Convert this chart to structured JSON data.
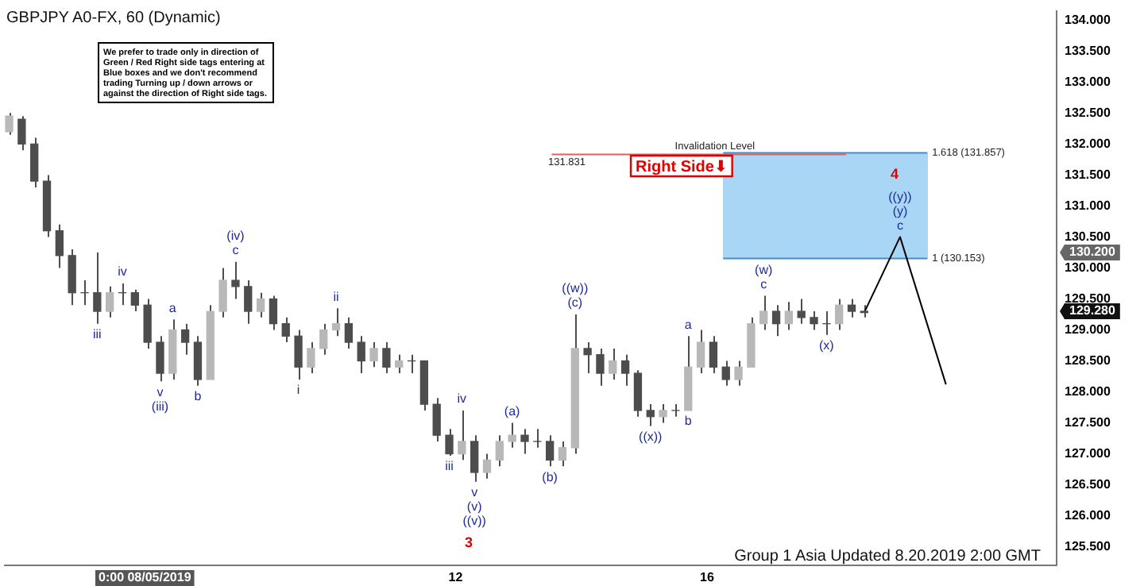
{
  "chart_data": {
    "type": "candlestick",
    "title": "GBPJPY A0-FX, 60 (Dynamic)",
    "x": [
      4.9,
      5.1,
      5.3,
      5.5,
      5.7,
      5.9,
      6.1,
      6.3,
      6.5,
      6.7,
      6.9,
      7.1,
      7.3,
      7.5,
      7.7,
      7.9,
      8.1,
      8.3,
      8.5,
      8.7,
      8.9,
      9.1,
      9.3,
      9.5,
      9.7,
      9.9,
      10.1,
      10.3,
      10.5,
      10.7,
      10.9,
      11.1,
      11.3,
      11.5,
      11.7,
      11.9,
      12.1,
      12.3,
      12.5,
      12.7,
      12.9,
      13.1,
      13.3,
      13.5,
      13.7,
      13.9,
      14.1,
      14.3,
      14.5,
      14.7,
      14.9,
      15.1,
      15.3,
      15.5,
      15.7,
      15.9,
      16.1,
      16.3,
      16.5,
      16.7,
      16.9,
      17.1,
      17.3,
      17.5,
      17.7,
      17.9,
      18.1,
      18.3,
      18.5
    ],
    "ohlc": [
      [
        132.2,
        132.5,
        132.15,
        132.45
      ],
      [
        132.4,
        132.45,
        131.9,
        132.0
      ],
      [
        132.0,
        132.1,
        131.3,
        131.4
      ],
      [
        131.4,
        131.5,
        130.5,
        130.6
      ],
      [
        130.6,
        130.7,
        130.0,
        130.2
      ],
      [
        130.2,
        130.3,
        129.4,
        129.6
      ],
      [
        129.6,
        129.8,
        129.4,
        129.6
      ],
      [
        129.6,
        130.25,
        129.1,
        129.3
      ],
      [
        129.3,
        129.7,
        129.2,
        129.6
      ],
      [
        129.6,
        129.75,
        129.4,
        129.6
      ],
      [
        129.6,
        129.65,
        129.3,
        129.4
      ],
      [
        129.4,
        129.5,
        128.7,
        128.8
      ],
      [
        128.8,
        128.9,
        128.17,
        128.3
      ],
      [
        128.3,
        129.17,
        128.2,
        129.0
      ],
      [
        129.0,
        129.1,
        128.6,
        128.8
      ],
      [
        128.8,
        128.9,
        128.1,
        128.2
      ],
      [
        128.2,
        129.4,
        128.2,
        129.3
      ],
      [
        129.3,
        130.0,
        129.2,
        129.8
      ],
      [
        129.8,
        130.1,
        129.5,
        129.7
      ],
      [
        129.7,
        129.8,
        129.1,
        129.3
      ],
      [
        129.3,
        129.6,
        129.2,
        129.5
      ],
      [
        129.5,
        129.55,
        129.0,
        129.1
      ],
      [
        129.1,
        129.2,
        128.8,
        128.9
      ],
      [
        128.9,
        129.0,
        128.2,
        128.4
      ],
      [
        128.4,
        128.8,
        128.3,
        128.7
      ],
      [
        128.7,
        129.1,
        128.6,
        129.0
      ],
      [
        129.0,
        129.35,
        128.9,
        129.1
      ],
      [
        129.1,
        129.2,
        128.7,
        128.8
      ],
      [
        128.8,
        128.9,
        128.3,
        128.5
      ],
      [
        128.5,
        128.8,
        128.4,
        128.7
      ],
      [
        128.7,
        128.8,
        128.3,
        128.4
      ],
      [
        128.4,
        128.6,
        128.3,
        128.5
      ],
      [
        128.5,
        128.6,
        128.3,
        128.5
      ],
      [
        128.5,
        128.5,
        127.7,
        127.8
      ],
      [
        127.8,
        127.9,
        127.2,
        127.3
      ],
      [
        127.3,
        127.4,
        126.97,
        127.0
      ],
      [
        127.0,
        127.7,
        126.9,
        127.2
      ],
      [
        127.2,
        127.3,
        126.55,
        126.7
      ],
      [
        126.7,
        127.0,
        126.6,
        126.9
      ],
      [
        126.9,
        127.3,
        126.8,
        127.2
      ],
      [
        127.2,
        127.5,
        127.1,
        127.3
      ],
      [
        127.3,
        127.4,
        127.0,
        127.2
      ],
      [
        127.2,
        127.4,
        127.1,
        127.2
      ],
      [
        127.2,
        127.3,
        126.8,
        126.9
      ],
      [
        126.9,
        127.2,
        126.8,
        127.1
      ],
      [
        127.1,
        129.25,
        127.0,
        128.7
      ],
      [
        128.7,
        128.8,
        128.3,
        128.6
      ],
      [
        128.6,
        128.7,
        128.1,
        128.3
      ],
      [
        128.3,
        128.7,
        128.2,
        128.5
      ],
      [
        128.5,
        128.6,
        128.1,
        128.3
      ],
      [
        128.3,
        128.35,
        127.6,
        127.7
      ],
      [
        127.7,
        127.8,
        127.45,
        127.6
      ],
      [
        127.6,
        127.8,
        127.5,
        127.7
      ],
      [
        127.7,
        127.8,
        127.6,
        127.7
      ],
      [
        127.7,
        128.9,
        127.7,
        128.4
      ],
      [
        128.4,
        129.0,
        128.3,
        128.8
      ],
      [
        128.8,
        128.9,
        128.3,
        128.4
      ],
      [
        128.4,
        128.5,
        128.1,
        128.2
      ],
      [
        128.2,
        128.5,
        128.1,
        128.4
      ],
      [
        128.4,
        129.2,
        128.4,
        129.1
      ],
      [
        129.1,
        129.55,
        129.0,
        129.3
      ],
      [
        129.3,
        129.4,
        128.9,
        129.1
      ],
      [
        129.1,
        129.45,
        129.0,
        129.3
      ],
      [
        129.3,
        129.5,
        129.1,
        129.2
      ],
      [
        129.2,
        129.3,
        129.0,
        129.1
      ],
      [
        129.1,
        129.3,
        128.92,
        129.1
      ],
      [
        129.1,
        129.5,
        129.0,
        129.4
      ],
      [
        129.4,
        129.5,
        129.2,
        129.3
      ],
      [
        129.3,
        129.4,
        129.2,
        129.28
      ]
    ],
    "series": [
      {
        "type": "line",
        "color": "#000000",
        "x": [
          18.5,
          19.07,
          19.8
        ],
        "values": [
          129.28,
          130.5,
          128.12
        ]
      }
    ],
    "xlim": [
      4.83,
      21.56
    ],
    "xticks": [
      {
        "value": 12,
        "label": "12"
      },
      {
        "value": 16,
        "label": "16"
      }
    ],
    "ylim": [
      125.2,
      134.15
    ],
    "yticks": [
      {
        "value": 125.5,
        "label": "125.500"
      },
      {
        "value": 126,
        "label": "126.000"
      },
      {
        "value": 126.5,
        "label": "126.500"
      },
      {
        "value": 127,
        "label": "127.000"
      },
      {
        "value": 127.5,
        "label": "127.500"
      },
      {
        "value": 128,
        "label": "128.000"
      },
      {
        "value": 128.5,
        "label": "128.500"
      },
      {
        "value": 129,
        "label": "129.000"
      },
      {
        "value": 129.5,
        "label": "129.500"
      },
      {
        "value": 130,
        "label": "130.000"
      },
      {
        "value": 130.5,
        "label": "130.500"
      },
      {
        "value": 131,
        "label": "131.000"
      },
      {
        "value": 131.5,
        "label": "131.500"
      },
      {
        "value": 132,
        "label": "132.000"
      },
      {
        "value": 132.5,
        "label": "132.500"
      },
      {
        "value": 133,
        "label": "133.000"
      },
      {
        "value": 133.5,
        "label": "133.500"
      },
      {
        "value": 134,
        "label": "134.000"
      }
    ],
    "ref_lines": [
      {
        "axis": "y",
        "value": 131.831,
        "label": "Invalidation Level",
        "color": "#e06060"
      },
      {
        "axis": "y",
        "value": 131.857,
        "label": "1.618 (131.857)",
        "color": "#3f8fd0"
      },
      {
        "axis": "y",
        "value": 130.153,
        "label": "1 (130.153)",
        "color": "#3f8fd0"
      }
    ],
    "annotations": [
      "We prefer to trade only in direction of Green / Red Right side tags entering at Blue boxes and we don't recommend trading Turning up / down arrows or against the direction of Right side tags.",
      "Right Side⬇",
      "Group 1 Asia Updated 8.20.2019 2:00 GMT",
      "0:00 08/05/2019",
      "130.200",
      "129.280",
      "131.831",
      "3",
      "4",
      {
        "text": "iii",
        "x": 6.3,
        "y": 129.1
      },
      {
        "text": "iv",
        "x": 6.7,
        "y": 129.75
      },
      {
        "text": "v",
        "x": 7.3,
        "y": 128.17
      },
      {
        "text": "(iii)",
        "x": 7.3,
        "y": 128.17
      },
      {
        "text": "a",
        "x": 7.5,
        "y": 129.17
      },
      {
        "text": "b",
        "x": 7.9,
        "y": 128.1
      },
      {
        "text": "(iv)",
        "x": 8.5,
        "y": 130.1
      },
      {
        "text": "c",
        "x": 8.5,
        "y": 130.1
      },
      {
        "text": "i",
        "x": 9.5,
        "y": 128.2
      },
      {
        "text": "ii",
        "x": 10.1,
        "y": 129.35
      },
      {
        "text": "iii",
        "x": 11.9,
        "y": 126.97
      },
      {
        "text": "iv",
        "x": 12.1,
        "y": 127.7
      },
      {
        "text": "v",
        "x": 12.3,
        "y": 126.55
      },
      {
        "text": "(v)",
        "x": 12.3,
        "y": 126.55
      },
      {
        "text": "((v))",
        "x": 12.3,
        "y": 126.55
      },
      {
        "text": "(a)",
        "x": 12.9,
        "y": 127.5
      },
      {
        "text": "(b)",
        "x": 13.5,
        "y": 126.8
      },
      {
        "text": "((w))",
        "x": 13.9,
        "y": 129.25
      },
      {
        "text": "(c)",
        "x": 13.9,
        "y": 129.25
      },
      {
        "text": "((x))",
        "x": 15.1,
        "y": 127.45
      },
      {
        "text": "a",
        "x": 15.7,
        "y": 128.9
      },
      {
        "text": "b",
        "x": 15.7,
        "y": 127.7
      },
      {
        "text": "(w)",
        "x": 16.9,
        "y": 129.55
      },
      {
        "text": "c",
        "x": 16.9,
        "y": 129.55
      },
      {
        "text": "(x)",
        "x": 17.9,
        "y": 128.92
      },
      {
        "text": "((y))",
        "x": 19.07,
        "y": 130.5
      },
      {
        "text": "(y)",
        "x": 19.07,
        "y": 130.5
      },
      {
        "text": "c",
        "x": 19.07,
        "y": 130.5
      }
    ]
  }
}
